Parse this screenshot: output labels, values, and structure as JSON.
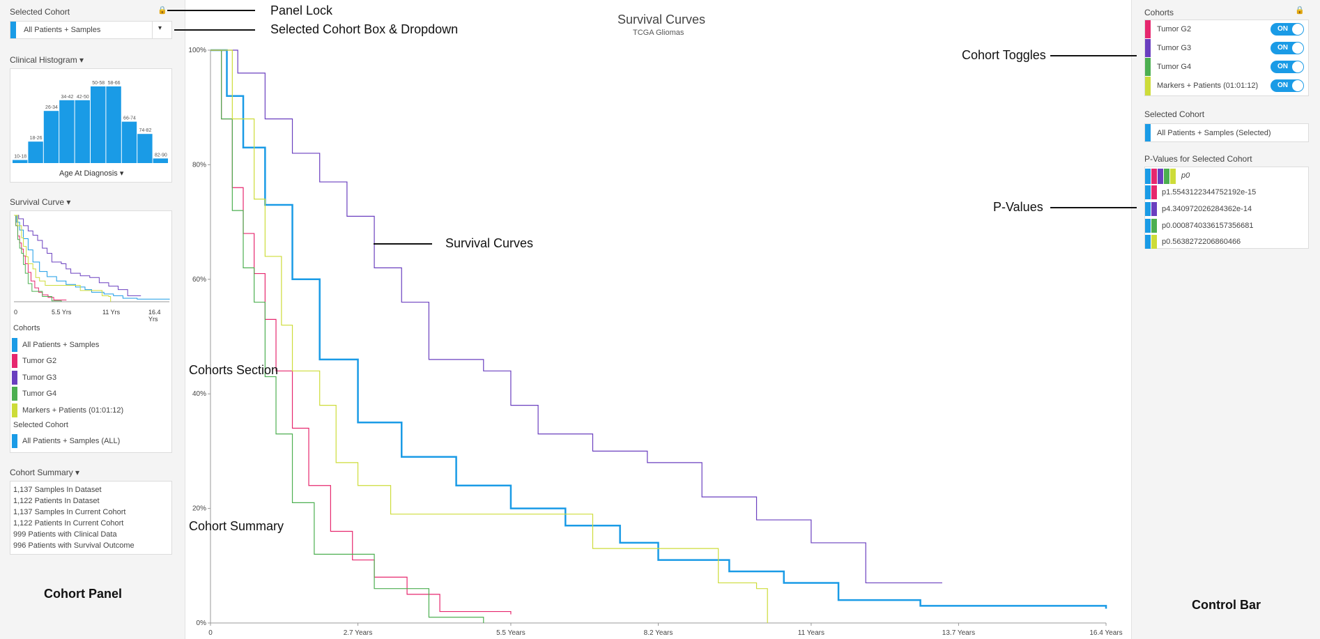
{
  "left": {
    "selected_cohort_label": "Selected Cohort",
    "selected_cohort_value": "All Patients + Samples",
    "clinical_histogram_label": "Clinical Histogram ▾",
    "histogram": {
      "bins": [
        "10-18",
        "18-26",
        "26-34",
        "34-42",
        "42-50",
        "50-58",
        "58-66",
        "66-74",
        "74-82",
        "82-90"
      ],
      "values": [
        4,
        28,
        68,
        82,
        82,
        100,
        100,
        54,
        38,
        6
      ],
      "axis_label": "Age At Diagnosis ▾"
    },
    "survival_curve_label": "Survival Curve ▾",
    "mini_ticks": [
      "0",
      "5.5 Yrs",
      "11 Yrs",
      "16.4 Yrs"
    ],
    "cohorts_label": "Cohorts",
    "cohorts": [
      {
        "name": "All Patients + Samples",
        "color": "#1a9be6"
      },
      {
        "name": "Tumor G2",
        "color": "#e6276e"
      },
      {
        "name": "Tumor G3",
        "color": "#6a3fbf"
      },
      {
        "name": "Tumor G4",
        "color": "#4caf50"
      },
      {
        "name": "Markers + Patients (01:01:12)",
        "color": "#cddc39"
      }
    ],
    "selected_cohort_sub_label": "Selected Cohort",
    "selected_cohort_sub_value": "All Patients + Samples (ALL)",
    "summary_label": "Cohort Summary ▾",
    "summary": [
      "1,137 Samples In Dataset",
      "1,122 Patients In Dataset",
      "1,137 Samples In Current Cohort",
      "1,122 Patients In Current Cohort",
      "999 Patients with Clinical Data",
      "996 Patients with Survival Outcome"
    ]
  },
  "chart_data": {
    "type": "line",
    "title": "Survival Curves",
    "subtitle": "TCGA Gliomas",
    "y_ticks": [
      "100%",
      "80%",
      "60%",
      "40%",
      "20%",
      "0%"
    ],
    "x_ticks": [
      "0",
      "2.7 Years",
      "5.5 Years",
      "8.2 Years",
      "11 Years",
      "13.7 Years",
      "16.4 Years"
    ],
    "xlim": [
      0,
      16.4
    ],
    "ylim": [
      0,
      100
    ],
    "series": [
      {
        "color": "#1a9be6",
        "x": [
          0,
          0.3,
          0.6,
          1.0,
          1.5,
          2.0,
          2.7,
          3.5,
          4.5,
          5.5,
          6.5,
          7.5,
          8.2,
          9.5,
          10.5,
          11.5,
          13,
          16.4
        ],
        "y": [
          100,
          92,
          83,
          73,
          60,
          46,
          35,
          29,
          24,
          20,
          17,
          14,
          11,
          9,
          7,
          4,
          3,
          2.5
        ]
      },
      {
        "color": "#e6276e",
        "x": [
          0,
          0.2,
          0.4,
          0.6,
          0.8,
          1.0,
          1.2,
          1.5,
          1.8,
          2.2,
          2.6,
          3.0,
          3.6,
          4.2,
          5.5
        ],
        "y": [
          100,
          88,
          76,
          68,
          61,
          53,
          44,
          34,
          24,
          16,
          11,
          8,
          5,
          2,
          1.5
        ]
      },
      {
        "color": "#6a3fbf",
        "x": [
          0,
          0.5,
          1.0,
          1.5,
          2.0,
          2.5,
          3.0,
          3.5,
          4.0,
          5.0,
          5.5,
          6.0,
          7.0,
          8.0,
          9.0,
          10.0,
          11.0,
          12.0,
          13.4
        ],
        "y": [
          100,
          96,
          88,
          82,
          77,
          71,
          62,
          56,
          46,
          44,
          38,
          33,
          30,
          28,
          22,
          18,
          14,
          7,
          7
        ]
      },
      {
        "color": "#4caf50",
        "x": [
          0,
          0.2,
          0.4,
          0.6,
          0.8,
          1.0,
          1.2,
          1.5,
          1.9,
          3.0,
          4.0,
          5.0
        ],
        "y": [
          100,
          88,
          72,
          62,
          56,
          43,
          33,
          21,
          12,
          6,
          1,
          0
        ]
      },
      {
        "color": "#cddc39",
        "x": [
          0,
          0.4,
          0.8,
          1.0,
          1.3,
          1.5,
          2.0,
          2.3,
          2.7,
          3.3,
          4.0,
          5.0,
          7.0,
          9.3,
          10.0,
          10.2
        ],
        "y": [
          100,
          88,
          74,
          64,
          52,
          44,
          38,
          28,
          24,
          19,
          19,
          19,
          13,
          7,
          6,
          0
        ]
      }
    ]
  },
  "right": {
    "cohorts_label": "Cohorts",
    "toggles": [
      {
        "name": "Tumor G2",
        "color": "#e6276e",
        "state": "ON"
      },
      {
        "name": "Tumor G3",
        "color": "#6a3fbf",
        "state": "ON"
      },
      {
        "name": "Tumor G4",
        "color": "#4caf50",
        "state": "ON"
      },
      {
        "name": "Markers + Patients (01:01:12)",
        "color": "#cddc39",
        "state": "ON"
      }
    ],
    "selected_cohort_label": "Selected Cohort",
    "selected_cohort_value": "All Patients + Samples (Selected)",
    "pvalues_label": "P-Values for Selected Cohort",
    "pvalues": [
      {
        "text": "p0",
        "color": "#1a9be6"
      },
      {
        "text": "p1.5543122344752192e-15",
        "color": "#e6276e"
      },
      {
        "text": "p4.340972026284362e-14",
        "color": "#6a3fbf"
      },
      {
        "text": "p0.0008740336157356681",
        "color": "#4caf50"
      },
      {
        "text": "p0.5638272206860466",
        "color": "#cddc39"
      }
    ]
  },
  "annotations": {
    "panel_lock": "Panel Lock",
    "selected_cohort_box": "Selected Cohort Box & Dropdown",
    "cohort_toggles": "Cohort Toggles",
    "p_values": "P-Values",
    "survival_curves": "Survival Curves",
    "cohorts_section": "Cohorts Section",
    "cohort_summary": "Cohort Summary",
    "cohort_panel": "Cohort Panel",
    "control_bar": "Control Bar"
  }
}
